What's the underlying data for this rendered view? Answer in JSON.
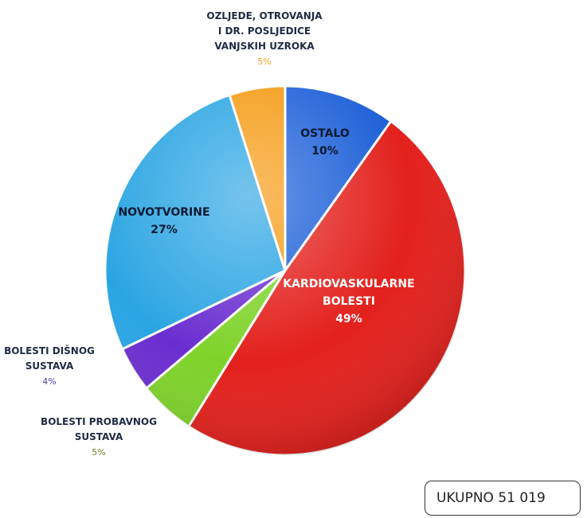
{
  "chart_data": {
    "type": "pie",
    "title": "",
    "slices": [
      {
        "label_lines": [
          "OSTALO"
        ],
        "value": 10,
        "value_label": "10%",
        "color": "#1c5fd8",
        "label_position": "inside"
      },
      {
        "label_lines": [
          "KARDIOVASKULARNE",
          "BOLESTI"
        ],
        "value": 49,
        "value_label": "49%",
        "color": "#e3201c",
        "label_position": "inside"
      },
      {
        "label_lines": [
          "BOLESTI PROBAVNOG",
          "SUSTAVA"
        ],
        "value": 5,
        "value_label": "5%",
        "color": "#7ed32a",
        "label_position": "outside"
      },
      {
        "label_lines": [
          "BOLESTI DIŠNOG",
          "SUSTAVA"
        ],
        "value": 4,
        "value_label": "4%",
        "color": "#6a2ed0",
        "label_position": "outside"
      },
      {
        "label_lines": [
          "NOVOTVORINE"
        ],
        "value": 27,
        "value_label": "27%",
        "color": "#2aa5e3",
        "label_position": "inside"
      },
      {
        "label_lines": [
          "OZLJEDE, OTROVANJA",
          "I DR. POSLJEDICE",
          "VANJSKIH UZROKA"
        ],
        "value": 5,
        "value_label": "5%",
        "color": "#f59a12",
        "label_position": "outside"
      }
    ]
  },
  "total": {
    "label": "UKUPNO 51 019"
  }
}
